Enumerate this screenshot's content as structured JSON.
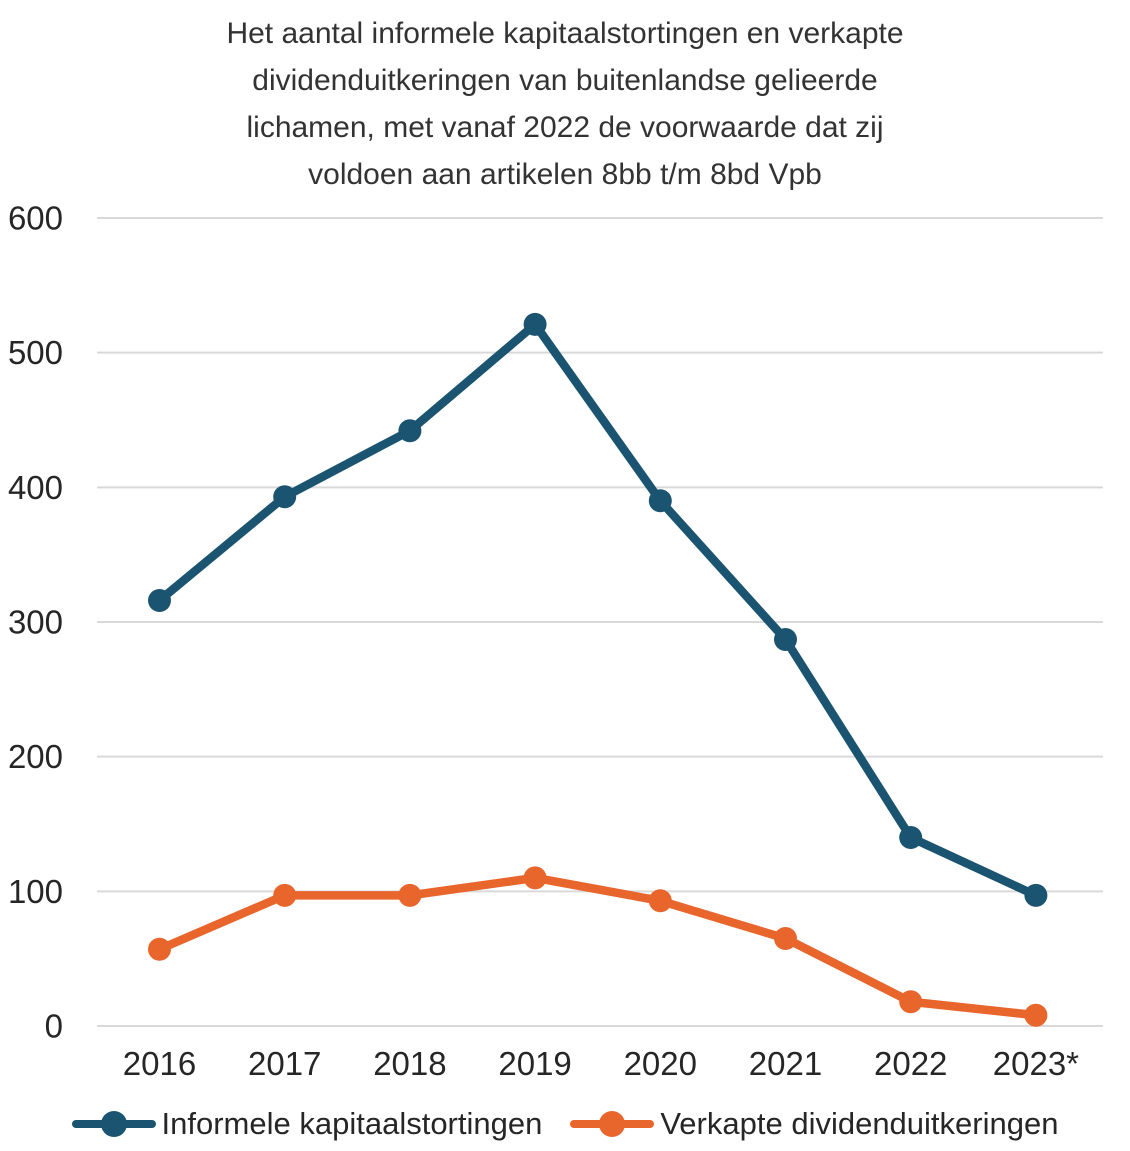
{
  "title": {
    "full": "Het aantal informele kapitaalstortingen en verkapte dividenduitkeringen van buitenlandse gelieerde lichamen, met vanaf 2022 de voorwaarde dat zij voldoen aan artikelen 8bb t/m 8bd Vpb",
    "lines": [
      "Het aantal informele kapitaalstortingen en verkapte",
      "dividenduitkeringen van buitenlandse gelieerde",
      "lichamen, met vanaf 2022 de voorwaarde dat zij",
      "voldoen aan artikelen 8bb t/m 8bd Vpb"
    ]
  },
  "chart_data": {
    "type": "line",
    "title": "Het aantal informele kapitaalstortingen en verkapte dividenduitkeringen van buitenlandse gelieerde lichamen, met vanaf 2022 de voorwaarde dat zij voldoen aan artikelen 8bb t/m 8bd Vpb",
    "categories": [
      "2016",
      "2017",
      "2018",
      "2019",
      "2020",
      "2021",
      "2022",
      "2023*"
    ],
    "series": [
      {
        "name": "Informele kapitaalstortingen",
        "color": "#1B5470",
        "values": [
          316,
          393,
          442,
          521,
          390,
          287,
          140,
          97
        ]
      },
      {
        "name": "Verkapte dividenduitkeringen",
        "color": "#E8652C",
        "values": [
          57,
          97,
          97,
          110,
          93,
          65,
          18,
          8
        ]
      }
    ],
    "xlabel": "",
    "ylabel": "",
    "ylim": [
      0,
      600
    ],
    "yticks": [
      0,
      100,
      200,
      300,
      400,
      500,
      600
    ],
    "grid": true,
    "gridline_color": "#D9D9D9",
    "axis_text_color": "#262626",
    "background_color": "#FFFFFF",
    "legend_position": "bottom"
  }
}
